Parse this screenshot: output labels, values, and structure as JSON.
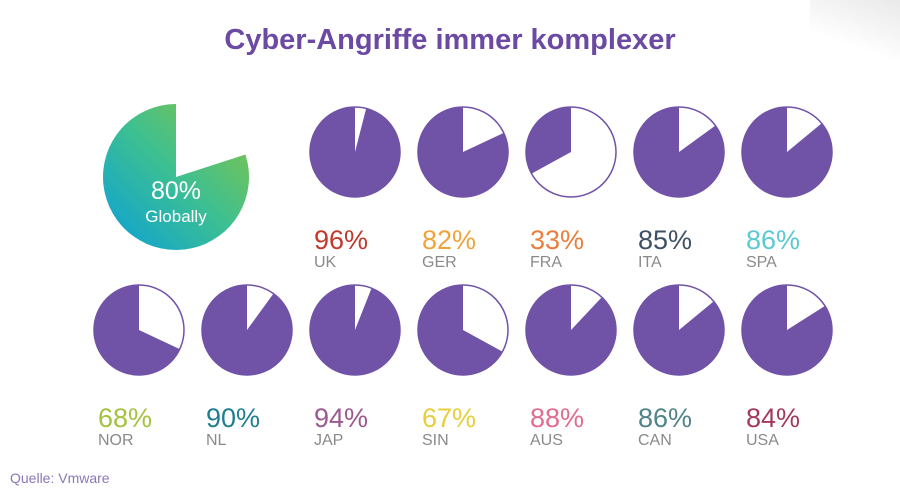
{
  "title": "Cyber-Angriffe immer komplexer",
  "source": "Quelle: Vmware",
  "colors": {
    "pie_fill": "#7052a7",
    "pie_remainder": "#ffffff",
    "global_gradient": [
      "#0a9fd9",
      "#3cbf93",
      "#8bc53f"
    ]
  },
  "chart_data": {
    "type": "pie",
    "global": {
      "value": 80,
      "value_label": "80%",
      "label": "Globally"
    },
    "series": [
      {
        "label": "UK",
        "value": 96,
        "value_label": "96%",
        "color": "#c0392b"
      },
      {
        "label": "GER",
        "value": 82,
        "value_label": "82%",
        "color": "#f0a338"
      },
      {
        "label": "FRA",
        "value": 33,
        "value_label": "33%",
        "color": "#ea7e3a"
      },
      {
        "label": "ITA",
        "value": 85,
        "value_label": "85%",
        "color": "#3d5066"
      },
      {
        "label": "SPA",
        "value": 86,
        "value_label": "86%",
        "color": "#5bc8d3"
      },
      {
        "label": "NOR",
        "value": 68,
        "value_label": "68%",
        "color": "#a3c23f"
      },
      {
        "label": "NL",
        "value": 90,
        "value_label": "90%",
        "color": "#1f7f8f"
      },
      {
        "label": "JAP",
        "value": 94,
        "value_label": "94%",
        "color": "#9b5a8f"
      },
      {
        "label": "SIN",
        "value": 67,
        "value_label": "67%",
        "color": "#e6cf3a"
      },
      {
        "label": "AUS",
        "value": 88,
        "value_label": "88%",
        "color": "#e06c8f"
      },
      {
        "label": "CAN",
        "value": 86,
        "value_label": "86%",
        "color": "#4f8589"
      },
      {
        "label": "USA",
        "value": 84,
        "value_label": "84%",
        "color": "#a23a5c"
      }
    ]
  }
}
